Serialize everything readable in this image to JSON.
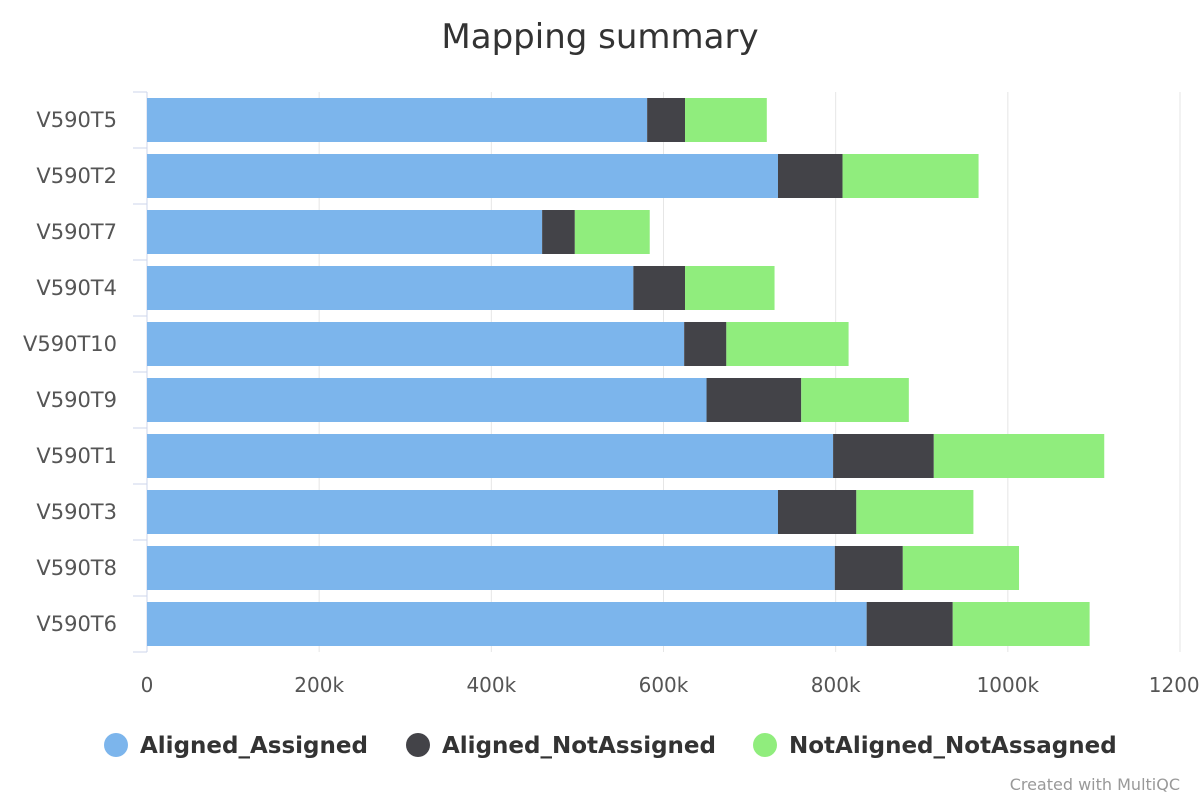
{
  "chart_data": {
    "type": "bar",
    "orientation": "horizontal",
    "stacked": true,
    "title": "Mapping summary",
    "categories": [
      "V590T5",
      "V590T2",
      "V590T7",
      "V590T4",
      "V590T10",
      "V590T9",
      "V590T1",
      "V590T3",
      "V590T8",
      "V590T6"
    ],
    "series": [
      {
        "name": "Aligned_Assigned",
        "color": "#7cb5ec",
        "values": [
          581000,
          733000,
          459000,
          565000,
          624000,
          650000,
          797000,
          733000,
          799000,
          836000
        ]
      },
      {
        "name": "Aligned_NotAssigned",
        "color": "#434348",
        "values": [
          44000,
          75000,
          38000,
          60000,
          49000,
          110000,
          117000,
          91000,
          79000,
          100000
        ]
      },
      {
        "name": "NotAligned_NotAssagned",
        "color": "#90ed7d",
        "values": [
          95000,
          158000,
          87000,
          104000,
          142000,
          125000,
          198000,
          136000,
          135000,
          159000
        ]
      }
    ],
    "xlim": [
      0,
      1200000
    ],
    "x_ticks": [
      0,
      200000,
      400000,
      600000,
      800000,
      1000000,
      1200000
    ],
    "x_tick_labels": [
      "0",
      "200k",
      "400k",
      "600k",
      "800k",
      "1000k",
      "1200k"
    ],
    "xlabel": "",
    "ylabel": "",
    "grid": true,
    "legend_position": "bottom"
  },
  "credit": "Created with MultiQC"
}
